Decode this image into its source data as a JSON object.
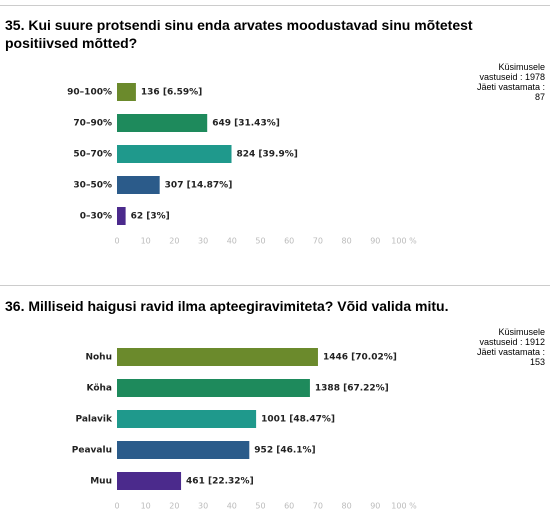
{
  "chart_data": [
    {
      "type": "hbar",
      "title": "35. Kui suure protsendi sinu enda arvates moodustavad sinu mõtetest positiivsed mõtted?",
      "annotations": [
        "Küsimusele vastuseid : 1978",
        "Jäeti vastamata : 87"
      ],
      "categories": [
        "90–100%",
        "70–90%",
        "50–70%",
        "30–50%",
        "0–30%"
      ],
      "values": [
        6.59,
        31.43,
        39.9,
        14.87,
        3
      ],
      "value_labels": [
        "136 [6.59%]",
        "649 [31.43%]",
        "824 [39.9%]",
        "307 [14.87%]",
        "62 [3%]"
      ],
      "colors": [
        "#6b8a2c",
        "#1e8a5c",
        "#1f998c",
        "#2b5b8a",
        "#4b2a8c"
      ],
      "xlim": [
        0,
        100
      ],
      "xticks": [
        0,
        10,
        20,
        30,
        40,
        50,
        60,
        70,
        80,
        90,
        {
          "value": 100,
          "label": "100 %"
        }
      ],
      "grid": false
    },
    {
      "type": "hbar",
      "title": "36. Milliseid haigusi ravid ilma apteegiravimiteta? Võid valida mitu.",
      "annotations": [
        "Küsimusele vastuseid : 1912",
        "Jäeti vastamata : 153"
      ],
      "categories": [
        "Nohu",
        "Köha",
        "Palavik",
        "Peavalu",
        "Muu"
      ],
      "values": [
        70.02,
        67.22,
        48.47,
        46.1,
        22.32
      ],
      "value_labels": [
        "1446 [70.02%]",
        "1388 [67.22%]",
        "1001 [48.47%]",
        "952 [46.1%]",
        "461 [22.32%]"
      ],
      "colors": [
        "#6b8a2c",
        "#1e8a5c",
        "#1f998c",
        "#2b5b8a",
        "#4b2a8c"
      ],
      "xlim": [
        0,
        100
      ],
      "xticks": [
        0,
        10,
        20,
        30,
        40,
        50,
        60,
        70,
        80,
        90,
        {
          "value": 100,
          "label": "100 %"
        }
      ],
      "grid": false
    }
  ]
}
